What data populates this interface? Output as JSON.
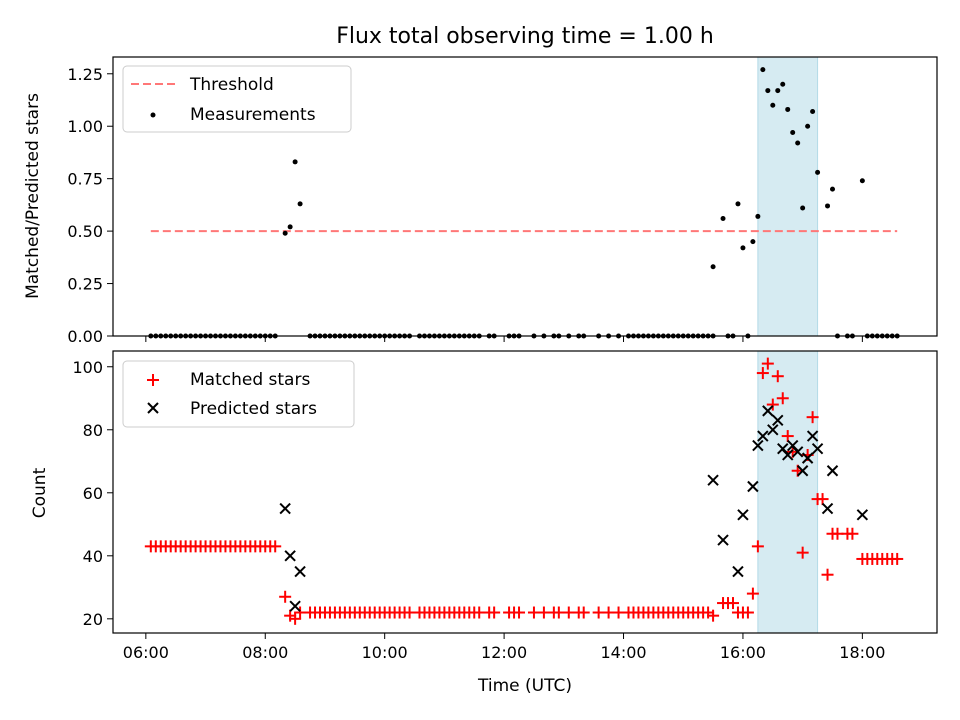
{
  "title": "Flux total observing time = 1.00 h",
  "chart_data": [
    {
      "type": "scatter",
      "ylabel": "Matched/Predicted stars",
      "xlim": [
        "05:27",
        "19:15"
      ],
      "ylim": [
        0,
        1.33
      ],
      "yticks": [
        "0.00",
        "0.25",
        "0.50",
        "0.75",
        "1.00",
        "1.25"
      ],
      "legend_position": "top-left",
      "highlight_span": [
        "16:15",
        "17:15"
      ],
      "threshold": {
        "name": "Threshold",
        "value": 0.5,
        "x_range": [
          "06:05",
          "18:35"
        ],
        "color": "#ff7777"
      },
      "measurements_name": "Measurements",
      "measurements": [
        [
          "06:05",
          0
        ],
        [
          "06:10",
          0
        ],
        [
          "06:15",
          0
        ],
        [
          "06:20",
          0
        ],
        [
          "06:25",
          0
        ],
        [
          "06:30",
          0
        ],
        [
          "06:35",
          0
        ],
        [
          "06:40",
          0
        ],
        [
          "06:45",
          0
        ],
        [
          "06:50",
          0
        ],
        [
          "06:55",
          0
        ],
        [
          "07:00",
          0
        ],
        [
          "07:05",
          0
        ],
        [
          "07:10",
          0
        ],
        [
          "07:15",
          0
        ],
        [
          "07:20",
          0
        ],
        [
          "07:25",
          0
        ],
        [
          "07:30",
          0
        ],
        [
          "07:35",
          0
        ],
        [
          "07:40",
          0
        ],
        [
          "07:45",
          0
        ],
        [
          "07:50",
          0
        ],
        [
          "07:55",
          0
        ],
        [
          "08:00",
          0
        ],
        [
          "08:05",
          0
        ],
        [
          "08:10",
          0
        ],
        [
          "08:20",
          0.49
        ],
        [
          "08:25",
          0.52
        ],
        [
          "08:30",
          0.83
        ],
        [
          "08:35",
          0.63
        ],
        [
          "08:45",
          0
        ],
        [
          "08:50",
          0
        ],
        [
          "08:55",
          0
        ],
        [
          "09:00",
          0
        ],
        [
          "09:05",
          0
        ],
        [
          "09:10",
          0
        ],
        [
          "09:15",
          0
        ],
        [
          "09:20",
          0
        ],
        [
          "09:25",
          0
        ],
        [
          "09:30",
          0
        ],
        [
          "09:35",
          0
        ],
        [
          "09:40",
          0
        ],
        [
          "09:45",
          0
        ],
        [
          "09:50",
          0
        ],
        [
          "09:55",
          0
        ],
        [
          "10:00",
          0
        ],
        [
          "10:05",
          0
        ],
        [
          "10:10",
          0
        ],
        [
          "10:15",
          0
        ],
        [
          "10:20",
          0
        ],
        [
          "10:25",
          0
        ],
        [
          "10:35",
          0
        ],
        [
          "10:40",
          0
        ],
        [
          "10:45",
          0
        ],
        [
          "10:50",
          0
        ],
        [
          "10:55",
          0
        ],
        [
          "11:00",
          0
        ],
        [
          "11:05",
          0
        ],
        [
          "11:10",
          0
        ],
        [
          "11:15",
          0
        ],
        [
          "11:20",
          0
        ],
        [
          "11:25",
          0
        ],
        [
          "11:30",
          0
        ],
        [
          "11:35",
          0
        ],
        [
          "11:45",
          0
        ],
        [
          "11:50",
          0
        ],
        [
          "12:05",
          0
        ],
        [
          "12:10",
          0
        ],
        [
          "12:15",
          0
        ],
        [
          "12:30",
          0
        ],
        [
          "12:40",
          0
        ],
        [
          "12:50",
          0
        ],
        [
          "12:55",
          0
        ],
        [
          "13:05",
          0
        ],
        [
          "13:15",
          0
        ],
        [
          "13:20",
          0
        ],
        [
          "13:35",
          0
        ],
        [
          "13:45",
          0
        ],
        [
          "13:55",
          0
        ],
        [
          "14:05",
          0
        ],
        [
          "14:10",
          0
        ],
        [
          "14:15",
          0
        ],
        [
          "14:20",
          0
        ],
        [
          "14:25",
          0
        ],
        [
          "14:30",
          0
        ],
        [
          "14:35",
          0
        ],
        [
          "14:40",
          0
        ],
        [
          "14:45",
          0
        ],
        [
          "14:50",
          0
        ],
        [
          "14:55",
          0
        ],
        [
          "15:00",
          0
        ],
        [
          "15:05",
          0
        ],
        [
          "15:10",
          0
        ],
        [
          "15:15",
          0
        ],
        [
          "15:20",
          0
        ],
        [
          "15:25",
          0
        ],
        [
          "15:30",
          0
        ],
        [
          "15:30",
          0.33
        ],
        [
          "15:40",
          0.56
        ],
        [
          "15:45",
          0
        ],
        [
          "15:50",
          0
        ],
        [
          "15:55",
          0.63
        ],
        [
          "16:00",
          0.42
        ],
        [
          "16:05",
          0
        ],
        [
          "16:10",
          0.45
        ],
        [
          "16:15",
          0.57
        ],
        [
          "16:20",
          1.27
        ],
        [
          "16:25",
          1.17
        ],
        [
          "16:30",
          1.1
        ],
        [
          "16:35",
          1.17
        ],
        [
          "16:40",
          1.2
        ],
        [
          "16:45",
          1.08
        ],
        [
          "16:50",
          0.97
        ],
        [
          "16:55",
          0.92
        ],
        [
          "17:00",
          0.61
        ],
        [
          "17:05",
          1.0
        ],
        [
          "17:10",
          1.07
        ],
        [
          "17:15",
          0.78
        ],
        [
          "17:25",
          0.62
        ],
        [
          "17:30",
          0.7
        ],
        [
          "17:35",
          0
        ],
        [
          "17:45",
          0
        ],
        [
          "17:50",
          0
        ],
        [
          "18:00",
          0.74
        ],
        [
          "18:05",
          0
        ],
        [
          "18:10",
          0
        ],
        [
          "18:15",
          0
        ],
        [
          "18:20",
          0
        ],
        [
          "18:25",
          0
        ],
        [
          "18:30",
          0
        ],
        [
          "18:35",
          0
        ]
      ]
    },
    {
      "type": "scatter",
      "xlabel": "Time (UTC)",
      "ylabel": "Count",
      "xlim": [
        "05:27",
        "19:15"
      ],
      "ylim": [
        15.5,
        105
      ],
      "yticks": [
        "20",
        "40",
        "60",
        "80",
        "100"
      ],
      "xticks": [
        "06:00",
        "08:00",
        "10:00",
        "12:00",
        "14:00",
        "16:00",
        "18:00"
      ],
      "legend_position": "top-left",
      "highlight_span": [
        "16:15",
        "17:15"
      ],
      "series": [
        {
          "name": "Matched stars",
          "color": "#ff0000",
          "marker": "plus",
          "points": [
            [
              "06:05",
              43
            ],
            [
              "06:10",
              43
            ],
            [
              "06:15",
              43
            ],
            [
              "06:20",
              43
            ],
            [
              "06:25",
              43
            ],
            [
              "06:30",
              43
            ],
            [
              "06:35",
              43
            ],
            [
              "06:40",
              43
            ],
            [
              "06:45",
              43
            ],
            [
              "06:50",
              43
            ],
            [
              "06:55",
              43
            ],
            [
              "07:00",
              43
            ],
            [
              "07:05",
              43
            ],
            [
              "07:10",
              43
            ],
            [
              "07:15",
              43
            ],
            [
              "07:20",
              43
            ],
            [
              "07:25",
              43
            ],
            [
              "07:30",
              43
            ],
            [
              "07:35",
              43
            ],
            [
              "07:40",
              43
            ],
            [
              "07:45",
              43
            ],
            [
              "07:50",
              43
            ],
            [
              "07:55",
              43
            ],
            [
              "08:00",
              43
            ],
            [
              "08:05",
              43
            ],
            [
              "08:10",
              43
            ],
            [
              "08:20",
              27
            ],
            [
              "08:25",
              21
            ],
            [
              "08:30",
              20
            ],
            [
              "08:35",
              22
            ],
            [
              "08:45",
              22
            ],
            [
              "08:50",
              22
            ],
            [
              "08:55",
              22
            ],
            [
              "09:00",
              22
            ],
            [
              "09:05",
              22
            ],
            [
              "09:10",
              22
            ],
            [
              "09:15",
              22
            ],
            [
              "09:20",
              22
            ],
            [
              "09:25",
              22
            ],
            [
              "09:30",
              22
            ],
            [
              "09:35",
              22
            ],
            [
              "09:40",
              22
            ],
            [
              "09:45",
              22
            ],
            [
              "09:50",
              22
            ],
            [
              "09:55",
              22
            ],
            [
              "10:00",
              22
            ],
            [
              "10:05",
              22
            ],
            [
              "10:10",
              22
            ],
            [
              "10:15",
              22
            ],
            [
              "10:20",
              22
            ],
            [
              "10:25",
              22
            ],
            [
              "10:35",
              22
            ],
            [
              "10:40",
              22
            ],
            [
              "10:45",
              22
            ],
            [
              "10:50",
              22
            ],
            [
              "10:55",
              22
            ],
            [
              "11:00",
              22
            ],
            [
              "11:05",
              22
            ],
            [
              "11:10",
              22
            ],
            [
              "11:15",
              22
            ],
            [
              "11:20",
              22
            ],
            [
              "11:25",
              22
            ],
            [
              "11:30",
              22
            ],
            [
              "11:35",
              22
            ],
            [
              "11:45",
              22
            ],
            [
              "11:50",
              22
            ],
            [
              "12:05",
              22
            ],
            [
              "12:10",
              22
            ],
            [
              "12:15",
              22
            ],
            [
              "12:30",
              22
            ],
            [
              "12:40",
              22
            ],
            [
              "12:50",
              22
            ],
            [
              "12:55",
              22
            ],
            [
              "13:05",
              22
            ],
            [
              "13:15",
              22
            ],
            [
              "13:20",
              22
            ],
            [
              "13:35",
              22
            ],
            [
              "13:45",
              22
            ],
            [
              "13:55",
              22
            ],
            [
              "14:05",
              22
            ],
            [
              "14:10",
              22
            ],
            [
              "14:15",
              22
            ],
            [
              "14:20",
              22
            ],
            [
              "14:25",
              22
            ],
            [
              "14:30",
              22
            ],
            [
              "14:35",
              22
            ],
            [
              "14:40",
              22
            ],
            [
              "14:45",
              22
            ],
            [
              "14:50",
              22
            ],
            [
              "14:55",
              22
            ],
            [
              "15:00",
              22
            ],
            [
              "15:05",
              22
            ],
            [
              "15:10",
              22
            ],
            [
              "15:15",
              22
            ],
            [
              "15:20",
              22
            ],
            [
              "15:25",
              22
            ],
            [
              "15:30",
              21
            ],
            [
              "15:40",
              25
            ],
            [
              "15:45",
              25
            ],
            [
              "15:50",
              25
            ],
            [
              "15:55",
              22
            ],
            [
              "16:00",
              22
            ],
            [
              "16:05",
              22
            ],
            [
              "16:10",
              28
            ],
            [
              "16:15",
              43
            ],
            [
              "16:20",
              98
            ],
            [
              "16:25",
              101
            ],
            [
              "16:30",
              88
            ],
            [
              "16:35",
              97
            ],
            [
              "16:40",
              90
            ],
            [
              "16:45",
              78
            ],
            [
              "16:50",
              73
            ],
            [
              "16:55",
              67
            ],
            [
              "17:00",
              41
            ],
            [
              "17:05",
              72
            ],
            [
              "17:10",
              84
            ],
            [
              "17:15",
              58
            ],
            [
              "17:20",
              58
            ],
            [
              "17:25",
              34
            ],
            [
              "17:30",
              47
            ],
            [
              "17:35",
              47
            ],
            [
              "17:45",
              47
            ],
            [
              "17:50",
              47
            ],
            [
              "18:00",
              39
            ],
            [
              "18:05",
              39
            ],
            [
              "18:10",
              39
            ],
            [
              "18:15",
              39
            ],
            [
              "18:20",
              39
            ],
            [
              "18:25",
              39
            ],
            [
              "18:30",
              39
            ],
            [
              "18:35",
              39
            ]
          ]
        },
        {
          "name": "Predicted stars",
          "color": "#000000",
          "marker": "x",
          "points": [
            [
              "08:20",
              55
            ],
            [
              "08:25",
              40
            ],
            [
              "08:30",
              24
            ],
            [
              "08:35",
              35
            ],
            [
              "15:30",
              64
            ],
            [
              "15:40",
              45
            ],
            [
              "15:55",
              35
            ],
            [
              "16:00",
              53
            ],
            [
              "16:10",
              62
            ],
            [
              "16:15",
              75
            ],
            [
              "16:20",
              78
            ],
            [
              "16:25",
              86
            ],
            [
              "16:30",
              80
            ],
            [
              "16:35",
              83
            ],
            [
              "16:40",
              74
            ],
            [
              "16:45",
              72
            ],
            [
              "16:50",
              75
            ],
            [
              "16:55",
              73
            ],
            [
              "17:00",
              67
            ],
            [
              "17:05",
              71
            ],
            [
              "17:10",
              78
            ],
            [
              "17:15",
              74
            ],
            [
              "17:25",
              55
            ],
            [
              "17:30",
              67
            ],
            [
              "18:00",
              53
            ]
          ]
        }
      ]
    }
  ]
}
